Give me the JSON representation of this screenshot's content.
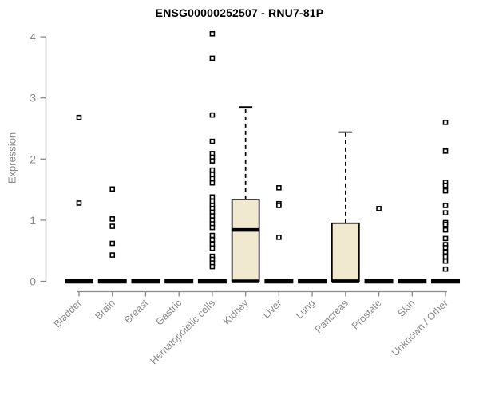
{
  "chart_data": {
    "type": "boxplot",
    "title": "ENSG00000252507 - RNU7-81P",
    "ylabel": "Expression",
    "xlabel": "",
    "ylim": [
      0,
      4
    ],
    "yticks": [
      0,
      1,
      2,
      3,
      4
    ],
    "grid": false,
    "legend": "none",
    "categories": [
      "Bladder",
      "Brain",
      "Breast",
      "Gastric",
      "Hematopoietic cells",
      "Kidney",
      "Liver",
      "Lung",
      "Pancreas",
      "Prostate",
      "Skin",
      "Unknown / Other"
    ],
    "boxes": [
      {
        "category": "Bladder",
        "q1": 0,
        "median": 0,
        "q3": 0,
        "whisker_low": 0,
        "whisker_high": 0,
        "outliers": [
          2.68,
          1.28
        ]
      },
      {
        "category": "Brain",
        "q1": 0,
        "median": 0,
        "q3": 0,
        "whisker_low": 0,
        "whisker_high": 0,
        "outliers": [
          1.51,
          1.02,
          0.9,
          0.62,
          0.43
        ]
      },
      {
        "category": "Breast",
        "q1": 0,
        "median": 0,
        "q3": 0,
        "whisker_low": 0,
        "whisker_high": 0,
        "outliers": []
      },
      {
        "category": "Gastric",
        "q1": 0,
        "median": 0,
        "q3": 0,
        "whisker_low": 0,
        "whisker_high": 0,
        "outliers": []
      },
      {
        "category": "Hematopoietic cells",
        "q1": 0,
        "median": 0,
        "q3": 0,
        "whisker_low": 0,
        "whisker_high": 0,
        "outliers": [
          4.05,
          3.65,
          2.72,
          2.29,
          2.09,
          2.03,
          1.97,
          1.82,
          1.75,
          1.68,
          1.61,
          1.38,
          1.31,
          1.24,
          1.19,
          1.13,
          1.07,
          1.0,
          0.94,
          0.88,
          0.75,
          0.68,
          0.61,
          0.54,
          0.41,
          0.36,
          0.3,
          0.24
        ]
      },
      {
        "category": "Kidney",
        "q1": 0,
        "median": 0.84,
        "q3": 1.34,
        "whisker_low": 0,
        "whisker_high": 2.85,
        "outliers": []
      },
      {
        "category": "Liver",
        "q1": 0,
        "median": 0,
        "q3": 0,
        "whisker_low": 0,
        "whisker_high": 0,
        "outliers": [
          1.53,
          1.27,
          1.24,
          0.72
        ]
      },
      {
        "category": "Lung",
        "q1": 0,
        "median": 0,
        "q3": 0,
        "whisker_low": 0,
        "whisker_high": 0,
        "outliers": []
      },
      {
        "category": "Pancreas",
        "q1": 0,
        "median": 0,
        "q3": 0.95,
        "whisker_low": 0,
        "whisker_high": 2.44,
        "outliers": []
      },
      {
        "category": "Prostate",
        "q1": 0,
        "median": 0,
        "q3": 0,
        "whisker_low": 0,
        "whisker_high": 0,
        "outliers": [
          1.19
        ]
      },
      {
        "category": "Skin",
        "q1": 0,
        "median": 0,
        "q3": 0,
        "whisker_low": 0,
        "whisker_high": 0,
        "outliers": []
      },
      {
        "category": "Unknown / Other",
        "q1": 0,
        "median": 0,
        "q3": 0,
        "whisker_low": 0,
        "whisker_high": 0,
        "outliers": [
          2.6,
          2.13,
          1.62,
          1.57,
          1.48,
          1.24,
          1.12,
          0.96,
          0.93,
          0.84,
          0.7,
          0.6,
          0.55,
          0.48,
          0.4,
          0.33,
          0.2
        ]
      }
    ],
    "colors": {
      "box_fill": "#f0e8cf",
      "box_stroke": "#000000",
      "median": "#000000",
      "outlier_stroke": "#000000",
      "outlier_fill": "#ffffff",
      "axis": "#8a8a8a",
      "title": "#000000",
      "background": "#ffffff"
    }
  }
}
